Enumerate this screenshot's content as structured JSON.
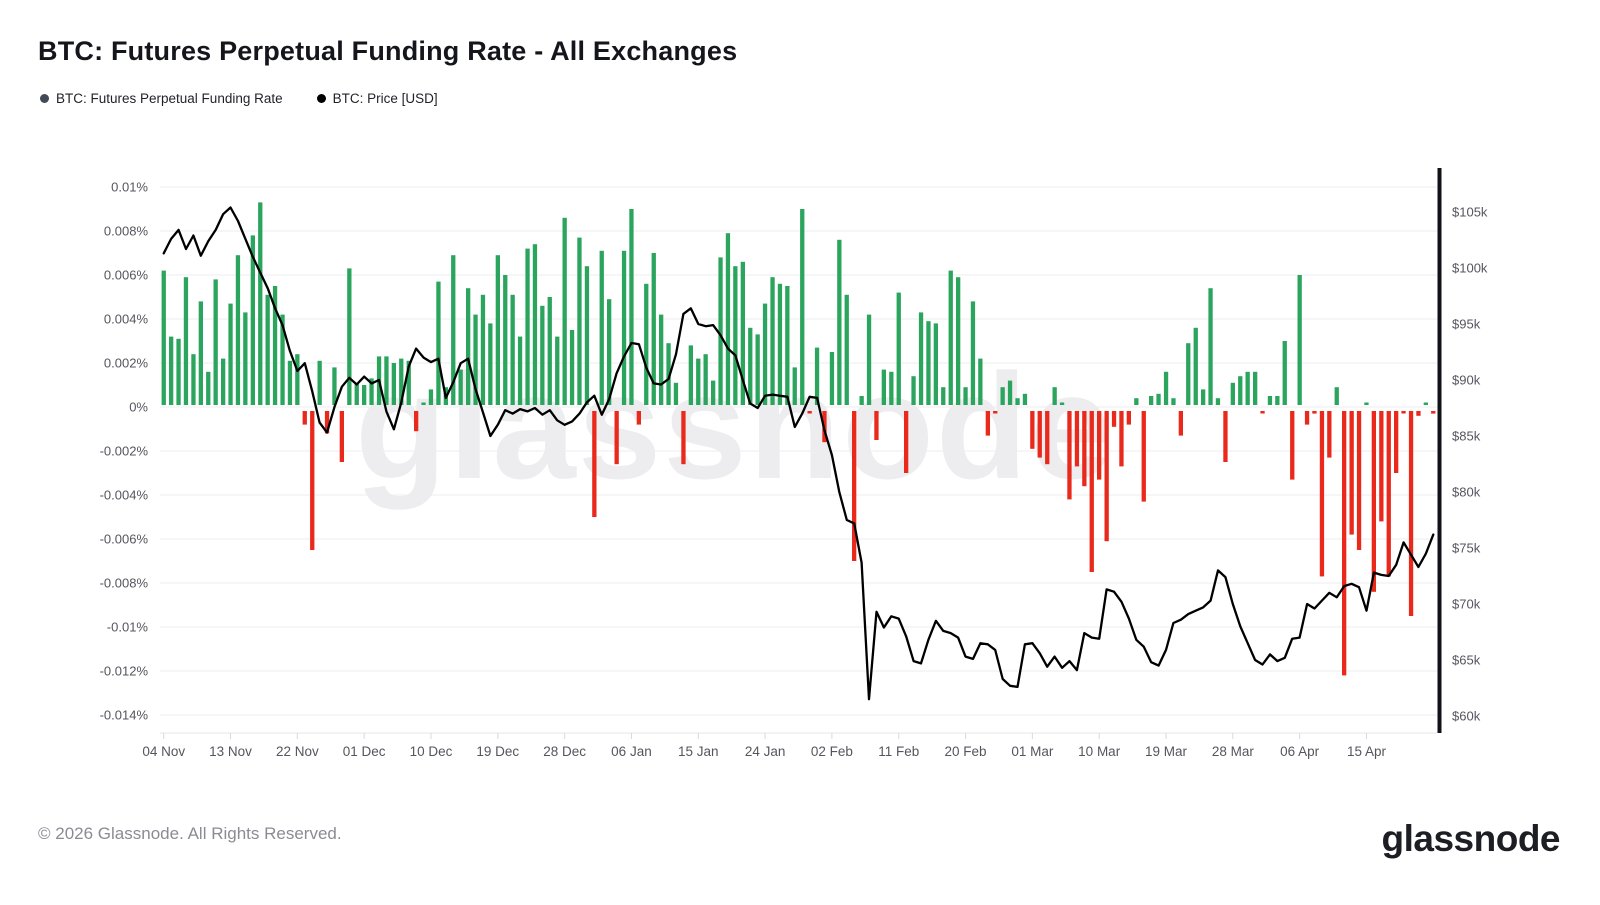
{
  "header": {
    "title": "BTC: Futures Perpetual Funding Rate - All Exchanges",
    "legend": [
      {
        "label": "BTC: Futures Perpetual Funding Rate",
        "dot_color": "#414a56"
      },
      {
        "label": "BTC: Price [USD]",
        "dot_color": "#000000"
      }
    ]
  },
  "watermark": "glassnode",
  "footer": {
    "copyright": "© 2026 Glassnode. All Rights Reserved.",
    "logo_text": "glassnode"
  },
  "colors": {
    "bar_positive": "#2ba55d",
    "bar_negative": "#e8291c",
    "price_line": "#000000",
    "gridline": "#eeeef2",
    "axis_bar": "#111118",
    "tick_text": "#55555e",
    "watermark": "#ededf0"
  },
  "chart_data": {
    "type": "bar",
    "title": "BTC: Futures Perpetual Funding Rate - All Exchanges",
    "x_labels": [
      "04 Nov",
      "13 Nov",
      "22 Nov",
      "01 Dec",
      "10 Dec",
      "19 Dec",
      "28 Dec",
      "06 Jan",
      "15 Jan",
      "24 Jan",
      "02 Feb",
      "11 Feb",
      "20 Feb",
      "01 Mar",
      "10 Mar",
      "19 Mar",
      "28 Mar",
      "06 Apr",
      "15 Apr"
    ],
    "x_label_indices": [
      0,
      9,
      18,
      27,
      36,
      45,
      54,
      63,
      72,
      81,
      90,
      99,
      108,
      117,
      126,
      135,
      144,
      153,
      162
    ],
    "left_axis": {
      "unit": "%",
      "ticks": [
        "0.01%",
        "0.008%",
        "0.006%",
        "0.004%",
        "0.002%",
        "0%",
        "-0.002%",
        "-0.004%",
        "-0.006%",
        "-0.008%",
        "-0.01%",
        "-0.012%",
        "-0.014%"
      ],
      "tick_values": [
        0.01,
        0.008,
        0.006,
        0.004,
        0.002,
        0,
        -0.002,
        -0.004,
        -0.006,
        -0.008,
        -0.01,
        -0.012,
        -0.014
      ],
      "range": [
        -0.014,
        0.01
      ]
    },
    "right_axis": {
      "unit": "USD",
      "ticks": [
        "$105k",
        "$100k",
        "$95k",
        "$90k",
        "$85k",
        "$80k",
        "$75k",
        "$70k",
        "$65k",
        "$60k"
      ],
      "tick_values_k": [
        105,
        100,
        95,
        90,
        85,
        80,
        75,
        70,
        65,
        60
      ],
      "range_k": [
        60,
        105
      ]
    },
    "series": [
      {
        "name": "BTC: Futures Perpetual Funding Rate",
        "type": "bar",
        "unit": "%",
        "values": [
          0.0062,
          0.0032,
          0.0031,
          0.0059,
          0.0024,
          0.0048,
          0.0016,
          0.0058,
          0.0022,
          0.0047,
          0.0069,
          0.0043,
          0.0078,
          0.0093,
          0.0051,
          0.0055,
          0.0042,
          0.0021,
          0.0024,
          -0.0008,
          -0.0065,
          0.0021,
          -0.0012,
          0.0018,
          -0.0025,
          0.0063,
          0.0011,
          0.001,
          0.0013,
          0.0023,
          0.0023,
          0.002,
          0.0022,
          0.0021,
          -0.0011,
          0.0001,
          0.0008,
          0.0057,
          0.0009,
          0.0069,
          0.0017,
          0.0054,
          0.0042,
          0.0051,
          0.0038,
          0.0069,
          0.006,
          0.0051,
          0.0032,
          0.0072,
          0.0074,
          0.0046,
          0.005,
          0.0032,
          0.0086,
          0.0035,
          0.0077,
          0.0064,
          -0.005,
          0.0071,
          0.0049,
          -0.0026,
          0.0071,
          0.009,
          -0.0008,
          0.0056,
          0.007,
          0.0042,
          0.0029,
          0.0011,
          -0.0026,
          0.0028,
          0.0022,
          0.0024,
          0.0012,
          0.0068,
          0.0079,
          0.0064,
          0.0066,
          0.0036,
          0.0033,
          0.0047,
          0.0059,
          0.0056,
          0.0055,
          0.0018,
          0.009,
          -0.0001,
          0.0027,
          -0.0016,
          0.0025,
          0.0076,
          0.0051,
          -0.007,
          0.0005,
          0.0042,
          -0.0015,
          0.0017,
          0.0016,
          0.0052,
          -0.003,
          0.0014,
          0.0043,
          0.0039,
          0.0038,
          0.0009,
          0.0062,
          0.0059,
          0.0009,
          0.0048,
          0.0022,
          -0.0013,
          -0.0002,
          0.0009,
          0.0012,
          0.0004,
          0.0006,
          -0.0019,
          -0.0023,
          -0.0026,
          0.0009,
          0.0002,
          -0.0042,
          -0.0027,
          -0.0036,
          -0.0075,
          -0.0033,
          -0.0061,
          -0.0009,
          -0.0027,
          -0.0008,
          0.0004,
          -0.0043,
          0.0005,
          0.0006,
          0.0016,
          0.0004,
          -0.0013,
          0.0029,
          0.0036,
          0.0008,
          0.0054,
          0.0004,
          -0.0025,
          0.0011,
          0.0014,
          0.0016,
          0.0016,
          -0.0002,
          0.0005,
          0.0005,
          0.003,
          -0.0033,
          0.006,
          -0.0008,
          -0.0003,
          -0.0077,
          -0.0023,
          0.0009,
          -0.0122,
          -0.0058,
          -0.0065,
          0.0002,
          -0.0084,
          -0.0052,
          -0.0077,
          -0.003,
          -0.0002,
          -0.0095,
          -0.0004,
          0.0002,
          -0.0003
        ]
      },
      {
        "name": "BTC: Price [USD]",
        "type": "line",
        "unit": "USD (thousands)",
        "values_k": [
          101.3,
          102.6,
          103.4,
          101.7,
          102.9,
          101.1,
          102.4,
          103.4,
          104.8,
          105.4,
          104.2,
          102.6,
          101.0,
          99.6,
          98.2,
          96.4,
          94.9,
          92.6,
          90.8,
          91.5,
          89.0,
          86.2,
          85.3,
          87.6,
          89.4,
          90.2,
          89.6,
          90.3,
          89.7,
          90.0,
          87.2,
          85.6,
          88.0,
          91.2,
          92.8,
          92.0,
          91.6,
          91.9,
          88.4,
          89.8,
          91.5,
          91.9,
          89.2,
          87.1,
          85.0,
          86.0,
          87.3,
          87.0,
          87.4,
          87.2,
          87.5,
          86.9,
          87.3,
          86.4,
          86.0,
          86.3,
          87.0,
          88.0,
          88.6,
          86.9,
          88.3,
          90.6,
          92.1,
          93.3,
          93.2,
          91.1,
          89.7,
          89.6,
          90.1,
          92.3,
          95.9,
          96.4,
          95.0,
          94.8,
          94.9,
          94.0,
          92.8,
          92.2,
          90.0,
          87.9,
          87.5,
          88.6,
          88.7,
          88.6,
          88.5,
          85.8,
          87.0,
          88.5,
          88.4,
          85.5,
          83.3,
          80.0,
          77.5,
          77.2,
          73.7,
          61.5,
          69.3,
          67.9,
          68.9,
          68.7,
          67.1,
          64.9,
          64.7,
          66.8,
          68.5,
          67.6,
          67.4,
          67.0,
          65.3,
          65.1,
          66.5,
          66.4,
          65.9,
          63.3,
          62.7,
          62.6,
          66.4,
          66.5,
          65.6,
          64.4,
          65.3,
          64.3,
          64.9,
          64.1,
          67.4,
          67.0,
          66.9,
          71.3,
          71.1,
          70.2,
          68.7,
          66.8,
          66.2,
          64.8,
          64.5,
          65.9,
          68.3,
          68.6,
          69.1,
          69.4,
          69.7,
          70.3,
          73.0,
          72.4,
          70.0,
          68.0,
          66.5,
          65.0,
          64.6,
          65.5,
          64.9,
          65.2,
          66.9,
          67.0,
          70.0,
          69.6,
          70.3,
          71.0,
          70.6,
          71.6,
          71.8,
          71.5,
          69.4,
          72.8,
          72.6,
          72.5,
          73.5,
          75.5,
          74.4,
          73.3,
          74.5,
          76.2
        ]
      }
    ]
  }
}
